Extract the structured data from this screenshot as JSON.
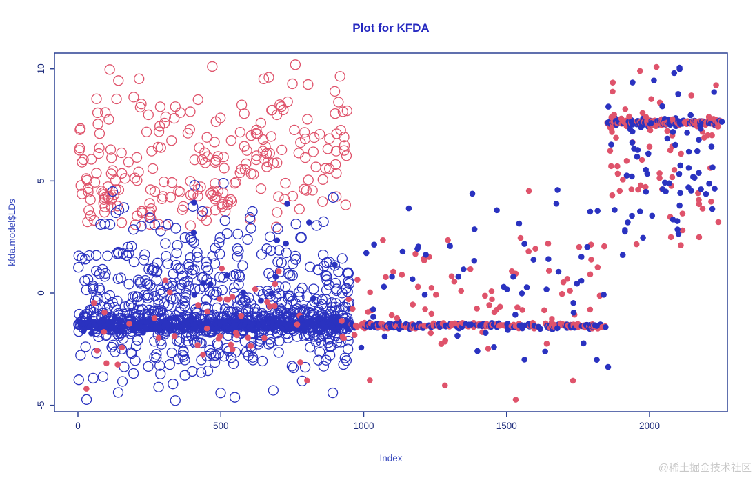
{
  "watermark": {
    "text": "@稀土掘金技术社区"
  },
  "chart_data": {
    "type": "scatter",
    "title": "Plot for KFDA",
    "xlabel": "Index",
    "ylabel": "kfda.model$LDs",
    "xlim": [
      -80,
      2270
    ],
    "ylim": [
      -5.3,
      10.7
    ],
    "x_ticks": [
      0,
      500,
      1000,
      1500,
      2000
    ],
    "y_ticks": [
      -5,
      0,
      5,
      10
    ],
    "grid": false,
    "legend": "none",
    "colors": {
      "c1": "#df536b",
      "c2": "#2a32c0"
    },
    "frame_color": "#2c4194",
    "markers": {
      "open_circle_radius": 7,
      "open_circle_stroke": 1.3,
      "dot_radius": 4.3
    },
    "series": [
      {
        "name": "class1-train-upper-circles",
        "marker": "open",
        "color": "c1",
        "count": 185,
        "x_range": [
          1,
          945
        ],
        "y": {
          "mean": 6.3,
          "sd": 1.8,
          "clip": [
            2.85,
            10.2
          ]
        }
      },
      {
        "name": "class1-train-midband-circles",
        "marker": "open",
        "color": "c1",
        "count": 55,
        "x_range": [
          1,
          560
        ],
        "y": {
          "mean": 4.0,
          "sd": 0.55,
          "clip": [
            3.0,
            5.2
          ]
        }
      },
      {
        "name": "class2-train-scatter-circles",
        "marker": "open",
        "color": "c2",
        "count": 500,
        "x_range": [
          1,
          950
        ],
        "y": {
          "mean": -0.4,
          "sd": 2.0,
          "clip": [
            -4.85,
            4.95
          ]
        }
      },
      {
        "name": "class2-train-band-circles",
        "marker": "open",
        "color": "c2",
        "count": 430,
        "x_range": [
          1,
          950
        ],
        "y": {
          "mean": -1.35,
          "sd": 0.3,
          "clip": [
            -2.2,
            -0.5
          ]
        },
        "band": true
      },
      {
        "name": "class2-train-band-dots",
        "marker": "dot",
        "color": "c2",
        "count": 320,
        "x_range": [
          1,
          950
        ],
        "y": {
          "mean": -1.42,
          "sd": 0.13,
          "clip": [
            -1.9,
            -1.0
          ]
        },
        "band": true
      },
      {
        "name": "class1-train-sparse-dots",
        "marker": "dot",
        "color": "c1",
        "count": 48,
        "x_range": [
          20,
          950
        ],
        "y": {
          "mean": -1.2,
          "sd": 1.3,
          "clip": [
            -4.6,
            1.2
          ]
        }
      },
      {
        "name": "class2-train-sparse-dots",
        "marker": "dot",
        "color": "c2",
        "count": 22,
        "x_range": [
          300,
          955
        ],
        "y": {
          "mean": 0.8,
          "sd": 1.6,
          "clip": [
            -2.5,
            4.8
          ]
        }
      },
      {
        "name": "test-mid-band-dots",
        "marker": "dot",
        "color": "mix",
        "count": 330,
        "x_range": [
          955,
          1860
        ],
        "y": {
          "mean": -1.45,
          "sd": 0.06,
          "clip": [
            -1.72,
            -1.18
          ]
        },
        "band": true
      },
      {
        "name": "class1-test-mid-scatter",
        "marker": "dot",
        "color": "c1",
        "count": 72,
        "x_range": [
          955,
          1858
        ],
        "y": {
          "mean": -0.3,
          "sd": 2.1,
          "clip": [
            -4.8,
            4.65
          ]
        }
      },
      {
        "name": "class2-test-mid-scatter",
        "marker": "dot",
        "color": "c2",
        "count": 58,
        "x_range": [
          985,
          1858
        ],
        "y": {
          "mean": 0.4,
          "sd": 2.2,
          "clip": [
            -3.8,
            4.8
          ]
        }
      },
      {
        "name": "test-right-band-dots",
        "marker": "dot",
        "color": "mix",
        "count": 230,
        "x_range": [
          1852,
          2255
        ],
        "y": {
          "mean": 7.62,
          "sd": 0.08,
          "clip": [
            7.3,
            7.95
          ]
        },
        "band": true
      },
      {
        "name": "class1-test-right-scatter",
        "marker": "dot",
        "color": "c1",
        "count": 66,
        "x_range": [
          1855,
          2250
        ],
        "y": {
          "mean": 5.6,
          "sd": 2.1,
          "clip": [
            1.75,
            10.2
          ]
        }
      },
      {
        "name": "class2-test-right-scatter",
        "marker": "dot",
        "color": "c2",
        "count": 66,
        "x_range": [
          1855,
          2250
        ],
        "y": {
          "mean": 5.2,
          "sd": 2.4,
          "clip": [
            1.7,
            10.1
          ]
        }
      }
    ],
    "outliers": [
      {
        "x": 470,
        "y": 10.1,
        "marker": "open",
        "color": "c1"
      },
      {
        "x": 650,
        "y": 9.55,
        "marker": "open",
        "color": "c1"
      },
      {
        "x": 509,
        "y": 4.9,
        "marker": "open",
        "color": "c2"
      },
      {
        "x": 2105,
        "y": 10.05,
        "marker": "dot",
        "color": "c2"
      },
      {
        "x": 1967,
        "y": 9.9,
        "marker": "dot",
        "color": "c1"
      },
      {
        "x": 1532,
        "y": -4.75,
        "marker": "dot",
        "color": "c1"
      }
    ]
  }
}
